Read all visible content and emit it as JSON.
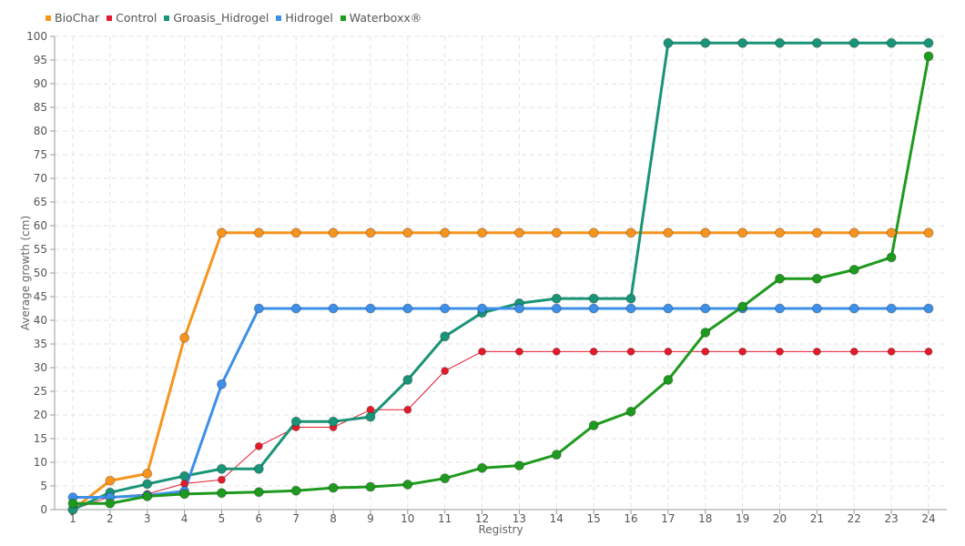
{
  "chart_data": {
    "type": "line",
    "title": "",
    "xlabel": "Registry",
    "ylabel": "Average growth (cm)",
    "x": [
      1,
      2,
      3,
      4,
      5,
      6,
      7,
      8,
      9,
      10,
      11,
      12,
      13,
      14,
      15,
      16,
      17,
      18,
      19,
      20,
      21,
      22,
      23,
      24
    ],
    "ylim": [
      0,
      100
    ],
    "ytick_step": 5,
    "grid": true,
    "legend_position": "top-left",
    "series": [
      {
        "name": "BioChar",
        "color": "#f7941d",
        "width": 3,
        "r": 5,
        "values": [
          0,
          6.1,
          7.6,
          36.3,
          58.5,
          58.5,
          58.5,
          58.5,
          58.5,
          58.5,
          58.5,
          58.5,
          58.5,
          58.5,
          58.5,
          58.5,
          58.5,
          58.5,
          58.5,
          58.5,
          58.5,
          58.5,
          58.5,
          58.5
        ]
      },
      {
        "name": "Control",
        "color": "#e31a2b",
        "width": 1,
        "r": 4,
        "values": [
          0,
          2.7,
          3.3,
          5.5,
          6.3,
          13.4,
          17.4,
          17.4,
          21.1,
          21.1,
          29.3,
          33.4,
          33.4,
          33.4,
          33.4,
          33.4,
          33.4,
          33.4,
          33.4,
          33.4,
          33.4,
          33.4,
          33.4,
          33.4
        ]
      },
      {
        "name": "Groasis_Hidrogel",
        "color": "#1a9477",
        "width": 3,
        "r": 5,
        "values": [
          0,
          3.6,
          5.4,
          7.1,
          8.6,
          8.6,
          18.6,
          18.6,
          19.6,
          27.4,
          36.6,
          41.6,
          43.6,
          44.6,
          44.6,
          44.6,
          98.6,
          98.6,
          98.6,
          98.6,
          98.6,
          98.6,
          98.6,
          98.6
        ]
      },
      {
        "name": "Hidrogel",
        "color": "#3d8fe8",
        "width": 3,
        "r": 5,
        "values": [
          2.6,
          2.6,
          3.0,
          3.9,
          26.5,
          42.5,
          42.5,
          42.5,
          42.5,
          42.5,
          42.5,
          42.5,
          42.5,
          42.5,
          42.5,
          42.5,
          42.5,
          42.5,
          42.5,
          42.5,
          42.5,
          42.5,
          42.5,
          42.5
        ]
      },
      {
        "name": "Waterboxx®",
        "color": "#1e9a1e",
        "width": 3,
        "r": 5,
        "values": [
          1.3,
          1.3,
          2.8,
          3.3,
          3.5,
          3.7,
          4.0,
          4.6,
          4.8,
          5.3,
          6.6,
          8.8,
          9.3,
          11.6,
          17.8,
          20.7,
          27.4,
          37.4,
          42.9,
          48.8,
          48.8,
          50.7,
          53.3,
          95.8
        ]
      }
    ]
  }
}
